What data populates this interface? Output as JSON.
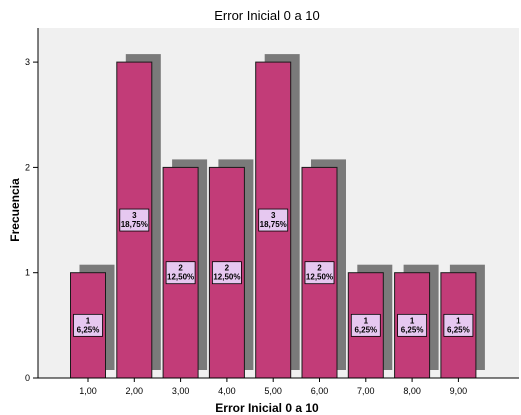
{
  "chart_data": {
    "type": "bar",
    "title": "Error Inicial 0 a 10",
    "xlabel": "Error Inicial 0 a 10",
    "ylabel": "Frecuencia",
    "categories": [
      "1,00",
      "2,00",
      "3,00",
      "4,00",
      "5,00",
      "6,00",
      "7,00",
      "8,00",
      "9,00"
    ],
    "values": [
      1,
      3,
      2,
      2,
      3,
      2,
      1,
      1,
      1
    ],
    "percent_labels": [
      "6,25%",
      "18,75%",
      "12,50%",
      "12,50%",
      "18,75%",
      "12,50%",
      "6,25%",
      "6,25%",
      "6,25%"
    ],
    "yticks": [
      "0",
      "1",
      "2",
      "3"
    ],
    "ylim": [
      0,
      3.4
    ],
    "grid": false,
    "legend": "none",
    "colors": {
      "bar": "#c23c78",
      "bar_border": "#1a1a1a",
      "shadow": "#7a7a7a",
      "label_box": "#e6c8f0",
      "plot_bg": "#f0f0f0"
    }
  }
}
